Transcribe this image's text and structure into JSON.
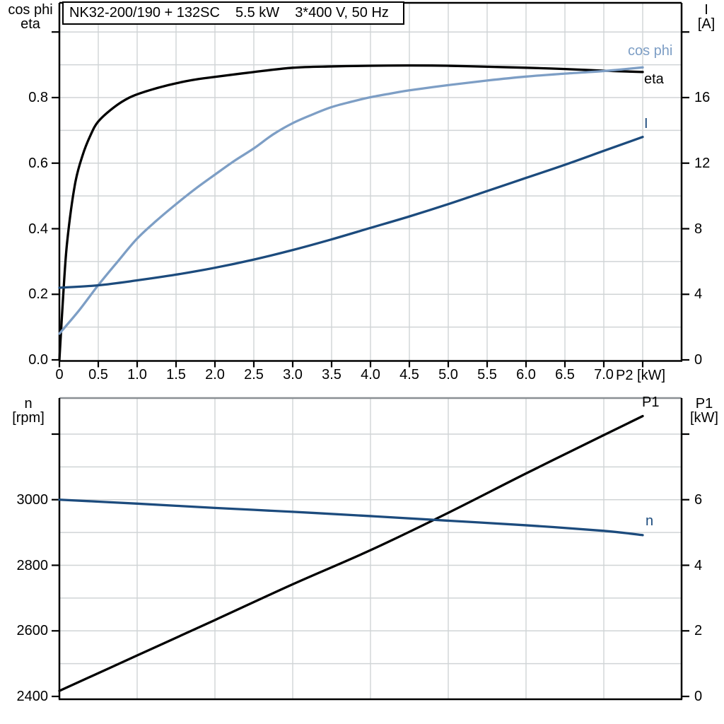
{
  "title_box": {
    "model": "NK32-200/190 + 132SC",
    "power": "5.5 kW",
    "supply": "3*400 V, 50 Hz"
  },
  "colors": {
    "eta": "#000000",
    "cos_phi": "#7d9ec5",
    "current": "#1c4b7d",
    "p1": "#000000",
    "n": "#1c4b7d",
    "grid": "#d0d4d6",
    "axis": "#000000",
    "bottom_chart_top_border": "#8a8f93"
  },
  "chart_data": [
    {
      "id": "electrical-panel",
      "type": "line",
      "title": "NK32-200/190 + 132SC 5.5 kW 3*400 V, 50 Hz",
      "x_axis": {
        "label": "P2 [kW]",
        "min": 0,
        "max": 8,
        "tick_step": 0.5,
        "grid_step": 0.5,
        "tick_labels": [
          "0",
          "0.5",
          "1.0",
          "1.5",
          "2.0",
          "2.5",
          "3.0",
          "3.5",
          "4.0",
          "4.5",
          "5.0",
          "5.5",
          "6.0",
          "6.5",
          "7.0"
        ],
        "tick_values": [
          0,
          0.5,
          1,
          1.5,
          2,
          2.5,
          3,
          3.5,
          4,
          4.5,
          5,
          5.5,
          6,
          6.5,
          7
        ],
        "extra_ticks": [
          7.5
        ]
      },
      "left_axis": {
        "header": [
          "cos phi",
          "eta"
        ],
        "min": 0,
        "max": 1.089,
        "tick_step": 0.2,
        "grid_step": 0.1,
        "tick_labels": [
          "0.0",
          "0.2",
          "0.4",
          "0.6",
          "0.8"
        ],
        "tick_values": [
          0,
          0.2,
          0.4,
          0.6,
          0.8
        ],
        "extra_ticks": [
          1.0
        ]
      },
      "right_axis": {
        "header": [
          "I",
          "[A]"
        ],
        "min": 0,
        "max": 21.8,
        "tick_step": 4,
        "grid_step": 2,
        "tick_labels": [
          "0",
          "4",
          "8",
          "12",
          "16"
        ],
        "tick_values": [
          0,
          4,
          8,
          12,
          16
        ],
        "extra_ticks": [
          20
        ]
      },
      "legend_position": "end-of-curve",
      "grid": true,
      "series": [
        {
          "name": "eta",
          "label": "eta",
          "axis": "left",
          "color_key": "eta",
          "points": [
            [
              0,
              0
            ],
            [
              0.05,
              0.2
            ],
            [
              0.1,
              0.36
            ],
            [
              0.2,
              0.535
            ],
            [
              0.3,
              0.625
            ],
            [
              0.4,
              0.685
            ],
            [
              0.5,
              0.727
            ],
            [
              0.7,
              0.77
            ],
            [
              0.9,
              0.8
            ],
            [
              1.1,
              0.818
            ],
            [
              1.4,
              0.838
            ],
            [
              1.7,
              0.853
            ],
            [
              2.0,
              0.863
            ],
            [
              2.5,
              0.878
            ],
            [
              3.0,
              0.891
            ],
            [
              3.5,
              0.895
            ],
            [
              4.0,
              0.897
            ],
            [
              4.5,
              0.898
            ],
            [
              5.0,
              0.897
            ],
            [
              5.5,
              0.894
            ],
            [
              6.0,
              0.891
            ],
            [
              6.5,
              0.887
            ],
            [
              7.0,
              0.882
            ],
            [
              7.5,
              0.878
            ]
          ]
        },
        {
          "name": "cos phi",
          "label": "cos phi",
          "axis": "left",
          "color_key": "cos_phi",
          "points": [
            [
              0,
              0.08
            ],
            [
              0.25,
              0.15
            ],
            [
              0.5,
              0.228
            ],
            [
              0.75,
              0.3
            ],
            [
              1.0,
              0.37
            ],
            [
              1.25,
              0.425
            ],
            [
              1.5,
              0.475
            ],
            [
              1.75,
              0.522
            ],
            [
              2.0,
              0.565
            ],
            [
              2.25,
              0.607
            ],
            [
              2.5,
              0.645
            ],
            [
              2.75,
              0.688
            ],
            [
              3.0,
              0.722
            ],
            [
              3.25,
              0.748
            ],
            [
              3.5,
              0.771
            ],
            [
              3.75,
              0.787
            ],
            [
              4.0,
              0.801
            ],
            [
              4.25,
              0.812
            ],
            [
              4.5,
              0.822
            ],
            [
              5.0,
              0.838
            ],
            [
              5.5,
              0.852
            ],
            [
              6.0,
              0.864
            ],
            [
              6.5,
              0.873
            ],
            [
              7.0,
              0.881
            ],
            [
              7.5,
              0.892
            ]
          ]
        },
        {
          "name": "I",
          "label": "I",
          "axis": "right",
          "color_key": "current",
          "points": [
            [
              0,
              4.4
            ],
            [
              0.5,
              4.55
            ],
            [
              1.0,
              4.85
            ],
            [
              1.5,
              5.2
            ],
            [
              2.0,
              5.62
            ],
            [
              2.5,
              6.12
            ],
            [
              3.0,
              6.7
            ],
            [
              3.5,
              7.35
            ],
            [
              4.0,
              8.05
            ],
            [
              4.5,
              8.75
            ],
            [
              5.0,
              9.5
            ],
            [
              5.5,
              10.3
            ],
            [
              6.0,
              11.1
            ],
            [
              6.5,
              11.9
            ],
            [
              7.0,
              12.75
            ],
            [
              7.5,
              13.6
            ]
          ]
        }
      ]
    },
    {
      "id": "mechanical-panel",
      "type": "line",
      "x_axis": {
        "label": "",
        "min": 0,
        "max": 8,
        "tick_step": 1,
        "grid_step": 1,
        "tick_labels": [],
        "tick_values": [],
        "extra_ticks": []
      },
      "left_axis": {
        "header": [
          "n",
          "[rpm]"
        ],
        "min": 2400,
        "max": 3310,
        "tick_step": 200,
        "grid_step": 100,
        "tick_labels": [
          "2400",
          "2600",
          "2800",
          "3000"
        ],
        "tick_values": [
          2400,
          2600,
          2800,
          3000
        ],
        "extra_ticks": [
          3200
        ]
      },
      "right_axis": {
        "header": [
          "P1",
          "[kW]"
        ],
        "min": 0,
        "max": 9.1,
        "tick_step": 2,
        "grid_step": 1,
        "tick_labels": [
          "0",
          "2",
          "4",
          "6"
        ],
        "tick_values": [
          0,
          2,
          4,
          6
        ],
        "extra_ticks": [
          8
        ]
      },
      "legend_position": "end-of-curve",
      "grid": true,
      "series": [
        {
          "name": "P1",
          "label": "P1",
          "axis": "right",
          "color_key": "p1",
          "points": [
            [
              0,
              0.17
            ],
            [
              1,
              1.25
            ],
            [
              2,
              2.33
            ],
            [
              3,
              3.42
            ],
            [
              4,
              4.46
            ],
            [
              5,
              5.6
            ],
            [
              6,
              6.8
            ],
            [
              7,
              7.97
            ],
            [
              7.5,
              8.55
            ]
          ]
        },
        {
          "name": "n",
          "label": "n",
          "axis": "left",
          "color_key": "n",
          "points": [
            [
              0,
              3000
            ],
            [
              1,
              2988
            ],
            [
              2,
              2975
            ],
            [
              3,
              2963
            ],
            [
              4,
              2950
            ],
            [
              5,
              2936
            ],
            [
              6,
              2922
            ],
            [
              7,
              2905
            ],
            [
              7.5,
              2892
            ]
          ]
        }
      ]
    }
  ]
}
